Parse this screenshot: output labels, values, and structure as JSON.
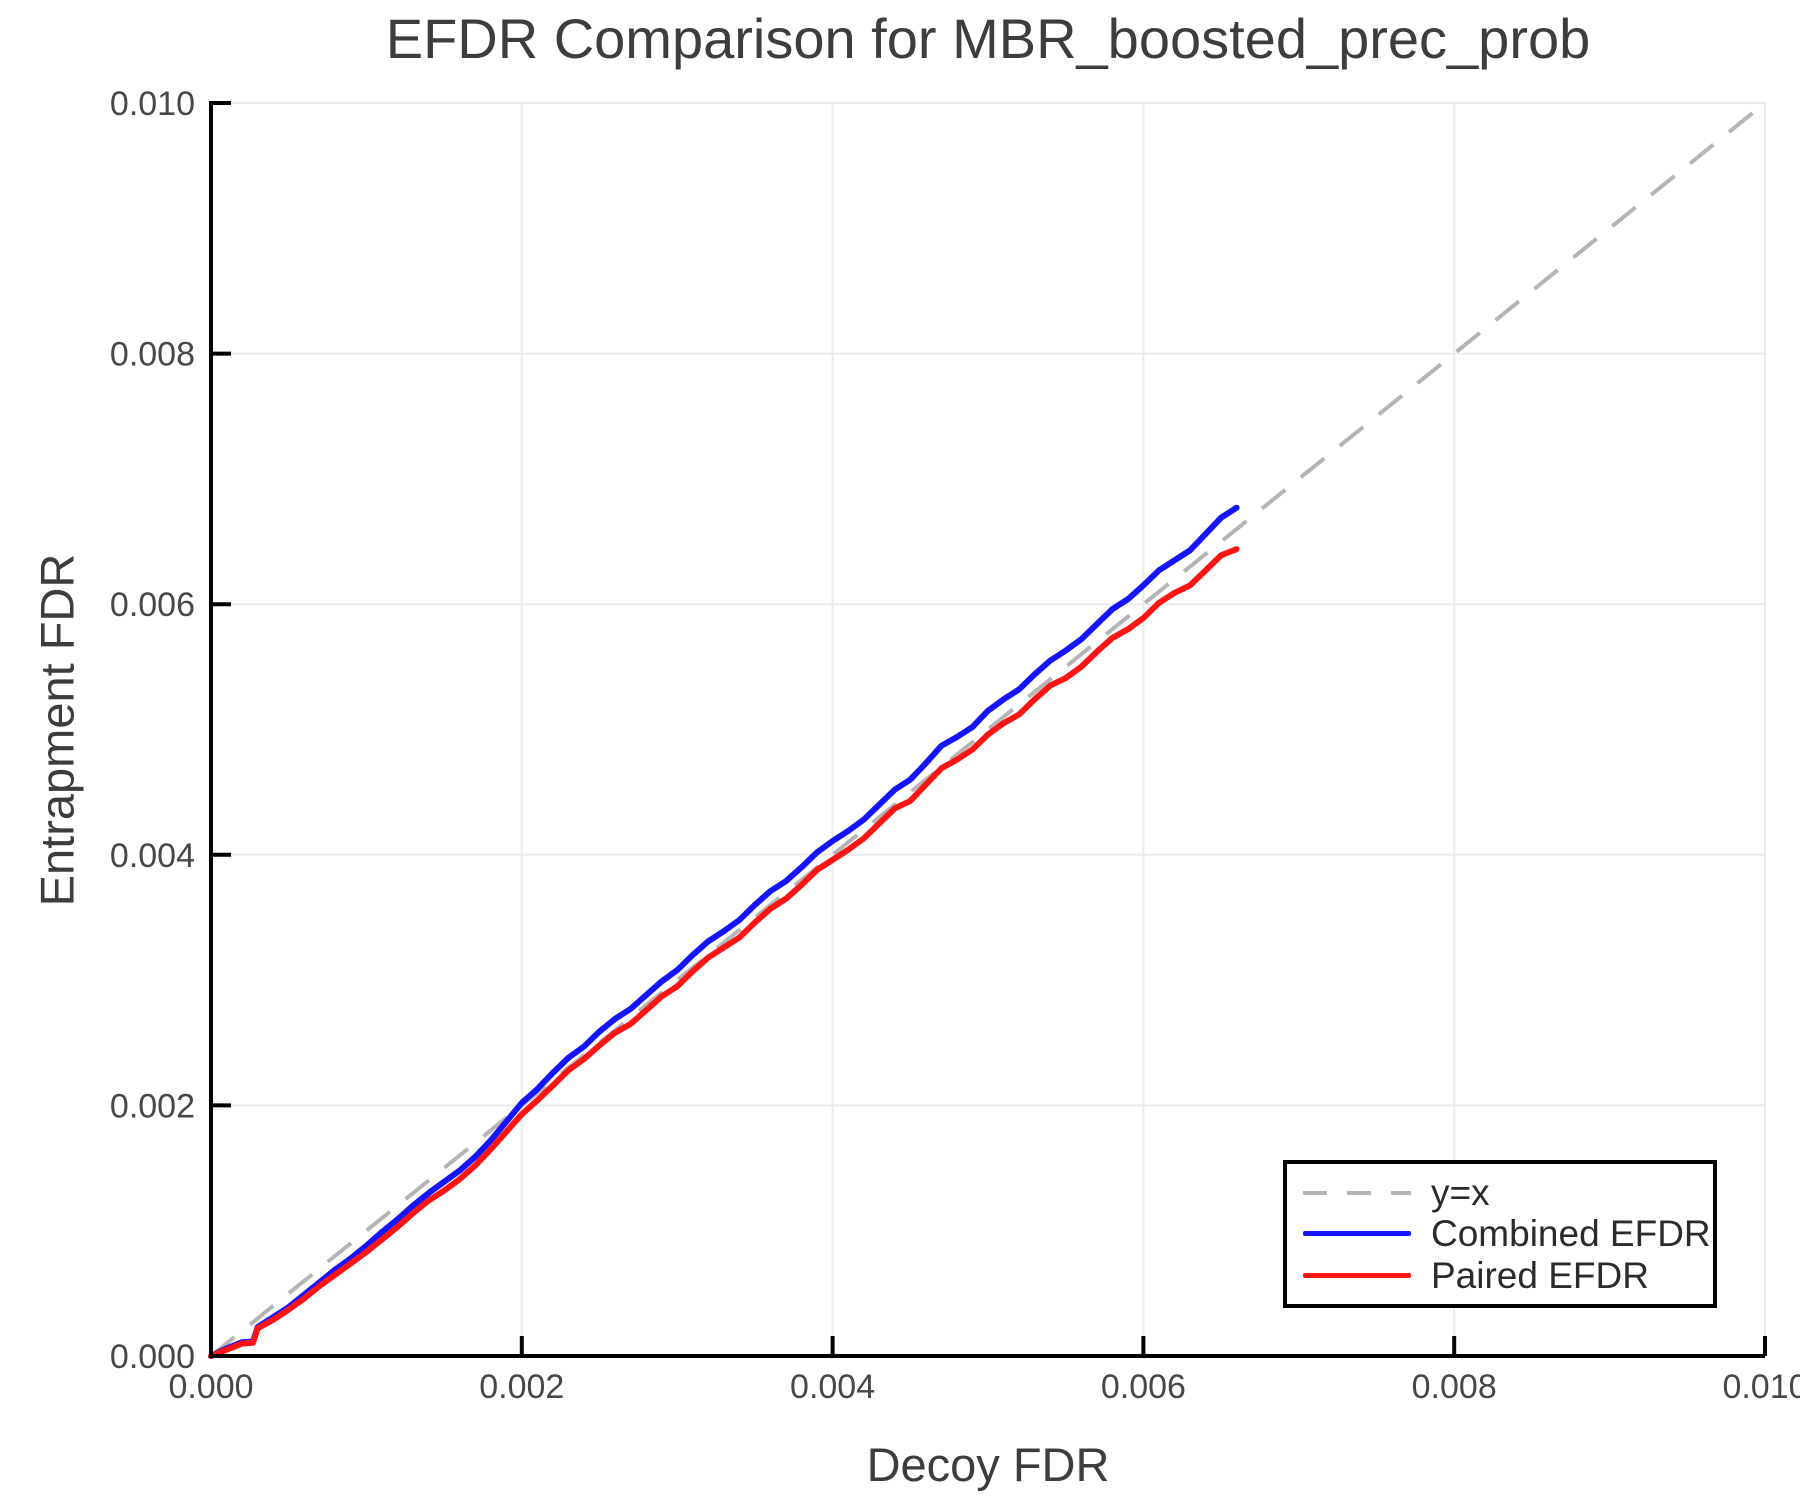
{
  "chart_data": {
    "type": "line",
    "title": "EFDR Comparison for MBR_boosted_prec_prob",
    "xlabel": "Decoy FDR",
    "ylabel": "Entrapment FDR",
    "xlim": [
      0.0,
      0.01
    ],
    "ylim": [
      0.0,
      0.01
    ],
    "xtick_labels": [
      "0.000",
      "0.002",
      "0.004",
      "0.006",
      "0.008",
      "0.010"
    ],
    "ytick_labels": [
      "0.000",
      "0.002",
      "0.004",
      "0.006",
      "0.008",
      "0.010"
    ],
    "xtick_values": [
      0.0,
      0.002,
      0.004,
      0.006,
      0.008,
      0.01
    ],
    "ytick_values": [
      0.0,
      0.002,
      0.004,
      0.006,
      0.008,
      0.01
    ],
    "grid": true,
    "grid_color": "#ebebeb",
    "legend_position": "lower right",
    "reference_line": {
      "label": "y=x",
      "style": "dashed",
      "color": "#b5b5b5",
      "from": [
        0.0,
        0.0
      ],
      "to": [
        0.01,
        0.01
      ]
    },
    "value_scale": 0.0001,
    "series": [
      {
        "name": "Combined EFDR",
        "color": "#1414ff",
        "style": "solid",
        "x": [
          0,
          1,
          2,
          2.7,
          3,
          4,
          5,
          6,
          7,
          8,
          9,
          10,
          11,
          12,
          13,
          14,
          15,
          16,
          17,
          18,
          19,
          20,
          21,
          22,
          23,
          24,
          25,
          26,
          27,
          28,
          29,
          30,
          31,
          32,
          33,
          34,
          35,
          36,
          37,
          38,
          39,
          40,
          41,
          42,
          43,
          44,
          45,
          46,
          47,
          48,
          49,
          50,
          51,
          52,
          53,
          54,
          55,
          56,
          57,
          58,
          59,
          60,
          61,
          62,
          63,
          64,
          65,
          66
        ],
        "y": [
          0,
          0.6,
          1.1,
          1.15,
          2.3,
          3.1,
          3.9,
          4.9,
          5.9,
          6.9,
          7.8,
          8.8,
          9.9,
          10.9,
          12.0,
          13.0,
          13.9,
          14.8,
          15.9,
          17.2,
          18.7,
          20.2,
          21.3,
          22.6,
          23.8,
          24.7,
          25.9,
          26.9,
          27.7,
          28.8,
          29.9,
          30.8,
          32.0,
          33.1,
          33.9,
          34.8,
          36.0,
          37.1,
          37.9,
          39.0,
          40.2,
          41.1,
          41.9,
          42.8,
          44.0,
          45.2,
          46.0,
          47.3,
          48.7,
          49.4,
          50.2,
          51.5,
          52.4,
          53.2,
          54.4,
          55.5,
          56.3,
          57.2,
          58.4,
          59.6,
          60.4,
          61.5,
          62.7,
          63.5,
          64.3,
          65.6,
          66.9,
          67.7
        ]
      },
      {
        "name": "Paired EFDR",
        "color": "#ff1414",
        "style": "solid",
        "x": [
          0,
          1,
          2,
          2.7,
          3,
          4,
          5,
          6,
          7,
          8,
          9,
          10,
          11,
          12,
          13,
          14,
          15,
          16,
          17,
          18,
          19,
          20,
          21,
          22,
          23,
          24,
          25,
          26,
          27,
          28,
          29,
          30,
          31,
          32,
          33,
          34,
          35,
          36,
          37,
          38,
          39,
          40,
          41,
          42,
          43,
          44,
          45,
          46,
          47,
          48,
          49,
          50,
          51,
          52,
          53,
          54,
          55,
          56,
          57,
          58,
          59,
          60,
          61,
          62,
          63,
          64,
          65,
          66
        ],
        "y": [
          0,
          0.5,
          1.0,
          1.05,
          2.2,
          2.9,
          3.7,
          4.6,
          5.6,
          6.5,
          7.4,
          8.3,
          9.3,
          10.3,
          11.4,
          12.4,
          13.2,
          14.1,
          15.2,
          16.5,
          17.9,
          19.3,
          20.4,
          21.6,
          22.8,
          23.7,
          24.8,
          25.8,
          26.5,
          27.6,
          28.7,
          29.5,
          30.7,
          31.8,
          32.6,
          33.4,
          34.6,
          35.7,
          36.5,
          37.6,
          38.8,
          39.6,
          40.4,
          41.3,
          42.5,
          43.7,
          44.3,
          45.6,
          46.9,
          47.6,
          48.4,
          49.6,
          50.5,
          51.2,
          52.4,
          53.5,
          54.1,
          55.0,
          56.2,
          57.3,
          58.0,
          58.9,
          60.1,
          60.9,
          61.5,
          62.7,
          63.9,
          64.4
        ]
      }
    ],
    "axis_color": "#000000",
    "tick_label_color": "#474747",
    "text_color": "#3d3d3d"
  }
}
